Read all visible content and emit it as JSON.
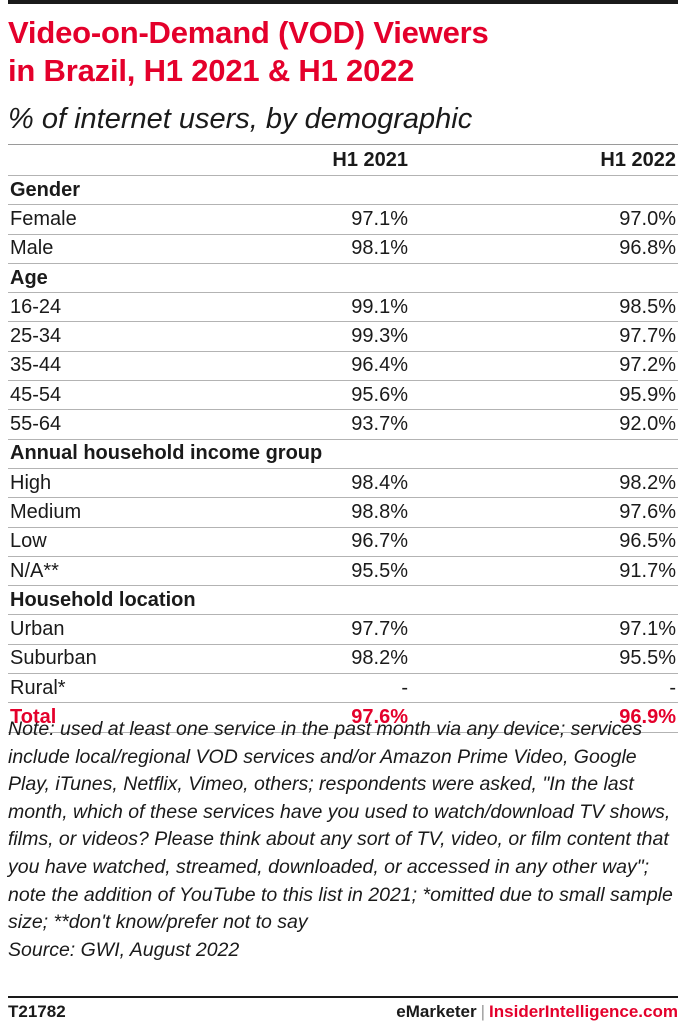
{
  "chart_data": {
    "type": "table",
    "title": "Video-on-Demand (VOD) Viewers in Brazil, H1 2021 & H1 2022",
    "subtitle": "% of internet users, by demographic",
    "columns": [
      "H1 2021",
      "H1 2022"
    ],
    "rows": [
      {
        "label": "Gender",
        "group": true
      },
      {
        "label": "Female",
        "values": [
          "97.1%",
          "97.0%"
        ]
      },
      {
        "label": "Male",
        "values": [
          "98.1%",
          "96.8%"
        ]
      },
      {
        "label": "Age",
        "group": true
      },
      {
        "label": "16-24",
        "values": [
          "99.1%",
          "98.5%"
        ]
      },
      {
        "label": "25-34",
        "values": [
          "99.3%",
          "97.7%"
        ]
      },
      {
        "label": "35-44",
        "values": [
          "96.4%",
          "97.2%"
        ]
      },
      {
        "label": "45-54",
        "values": [
          "95.6%",
          "95.9%"
        ]
      },
      {
        "label": "55-64",
        "values": [
          "93.7%",
          "92.0%"
        ]
      },
      {
        "label": "Annual household income group",
        "group": true
      },
      {
        "label": "High",
        "values": [
          "98.4%",
          "98.2%"
        ]
      },
      {
        "label": "Medium",
        "values": [
          "98.8%",
          "97.6%"
        ]
      },
      {
        "label": "Low",
        "values": [
          "96.7%",
          "96.5%"
        ]
      },
      {
        "label": "N/A**",
        "values": [
          "95.5%",
          "91.7%"
        ]
      },
      {
        "label": "Household location",
        "group": true
      },
      {
        "label": "Urban",
        "values": [
          "97.7%",
          "97.1%"
        ]
      },
      {
        "label": "Suburban",
        "values": [
          "98.2%",
          "95.5%"
        ]
      },
      {
        "label": "Rural*",
        "values": [
          "-",
          "-"
        ]
      },
      {
        "label": "Total",
        "values": [
          "97.6%",
          "96.9%"
        ],
        "total": true
      }
    ]
  },
  "title_line1": "Video-on-Demand (VOD) Viewers",
  "title_line2": "in Brazil, H1 2021 & H1 2022",
  "subtitle": "% of internet users, by demographic",
  "note": "Note: used at least one service in the past month via any device; services include local/regional VOD services and/or Amazon Prime Video, Google Play, iTunes, Netflix, Vimeo, others; respondents were asked, \"In the last month, which of these services have you used to watch/download TV shows, films, or videos? Please think about any sort of TV, video, or film content that you have watched, streamed, downloaded, or accessed in any other way\"; note the addition of YouTube to this list in 2021; *omitted due to small sample size; **don't know/prefer not to say",
  "source": "Source: GWI, August 2022",
  "footer": {
    "code": "T21782",
    "brand1": "eMarketer",
    "separator": "|",
    "brand2": "InsiderIntelligence.com"
  },
  "colors": {
    "accent": "#e4002b",
    "text": "#1a1a1a",
    "rule": "#b3b3b3"
  }
}
